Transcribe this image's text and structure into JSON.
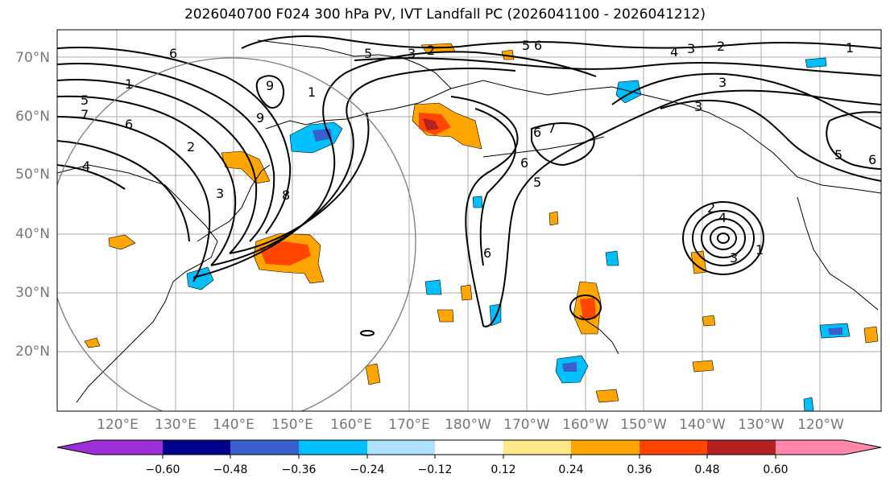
{
  "title": "2026040700 F024 300 hPa PV, IVT Landfall PC (2026041100 - 2026041212)",
  "map": {
    "lat_labels": [
      "70°N",
      "60°N",
      "50°N",
      "40°N",
      "30°N",
      "20°N"
    ],
    "lon_labels": [
      "120°E",
      "130°E",
      "140°E",
      "150°E",
      "160°E",
      "170°E",
      "180°W",
      "170°W",
      "160°W",
      "150°W",
      "140°W",
      "130°W",
      "120°W"
    ],
    "contour_labels": [
      "6",
      "5",
      "3",
      "2",
      "5",
      "6",
      "4",
      "3",
      "2",
      "1",
      "1",
      "5",
      "7",
      "6",
      "2",
      "4",
      "3",
      "9",
      "9",
      "8",
      "1",
      "7",
      "6",
      "6",
      "5",
      "6",
      "4",
      "3",
      "2",
      "1",
      "3",
      "3",
      "5",
      "6"
    ]
  },
  "colorbar": {
    "ticks": [
      "−0.60",
      "−0.48",
      "−0.36",
      "−0.24",
      "−0.12",
      "0.12",
      "0.24",
      "0.36",
      "0.48",
      "0.60"
    ],
    "colors": [
      "#9b30d8",
      "#00008b",
      "#3a5fcd",
      "#00bfff",
      "#b0e2ff",
      "#ffffff",
      "#ffe78a",
      "#ffa500",
      "#ff4500",
      "#b22222",
      "#ff88aa"
    ]
  }
}
